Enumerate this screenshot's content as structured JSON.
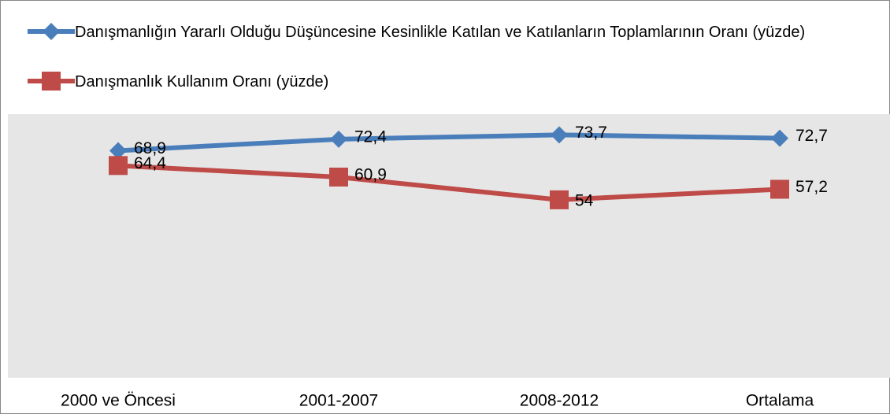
{
  "chart_data": {
    "type": "line",
    "categories": [
      "2000 ve Öncesi",
      "2001-2007",
      "2008-2012",
      "Ortalama"
    ],
    "series": [
      {
        "name": "Danışmanlığın Yararlı Olduğu Düşüncesine Kesinlikle Katılan ve Katılanların Toplamlarının Oranı (yüzde)",
        "color": "#4a7ebb",
        "marker": "diamond",
        "values": [
          68.9,
          72.4,
          73.7,
          72.7
        ],
        "value_labels": [
          "68,9",
          "72,4",
          "73,7",
          "72,7"
        ]
      },
      {
        "name": "Danışmanlık Kullanım Oranı (yüzde)",
        "color": "#be4b48",
        "marker": "square",
        "values": [
          64.4,
          60.9,
          54,
          57.2
        ],
        "value_labels": [
          "64,4",
          "60,9",
          "54",
          "57,2"
        ]
      }
    ],
    "ylim": [
      0,
      80
    ]
  }
}
